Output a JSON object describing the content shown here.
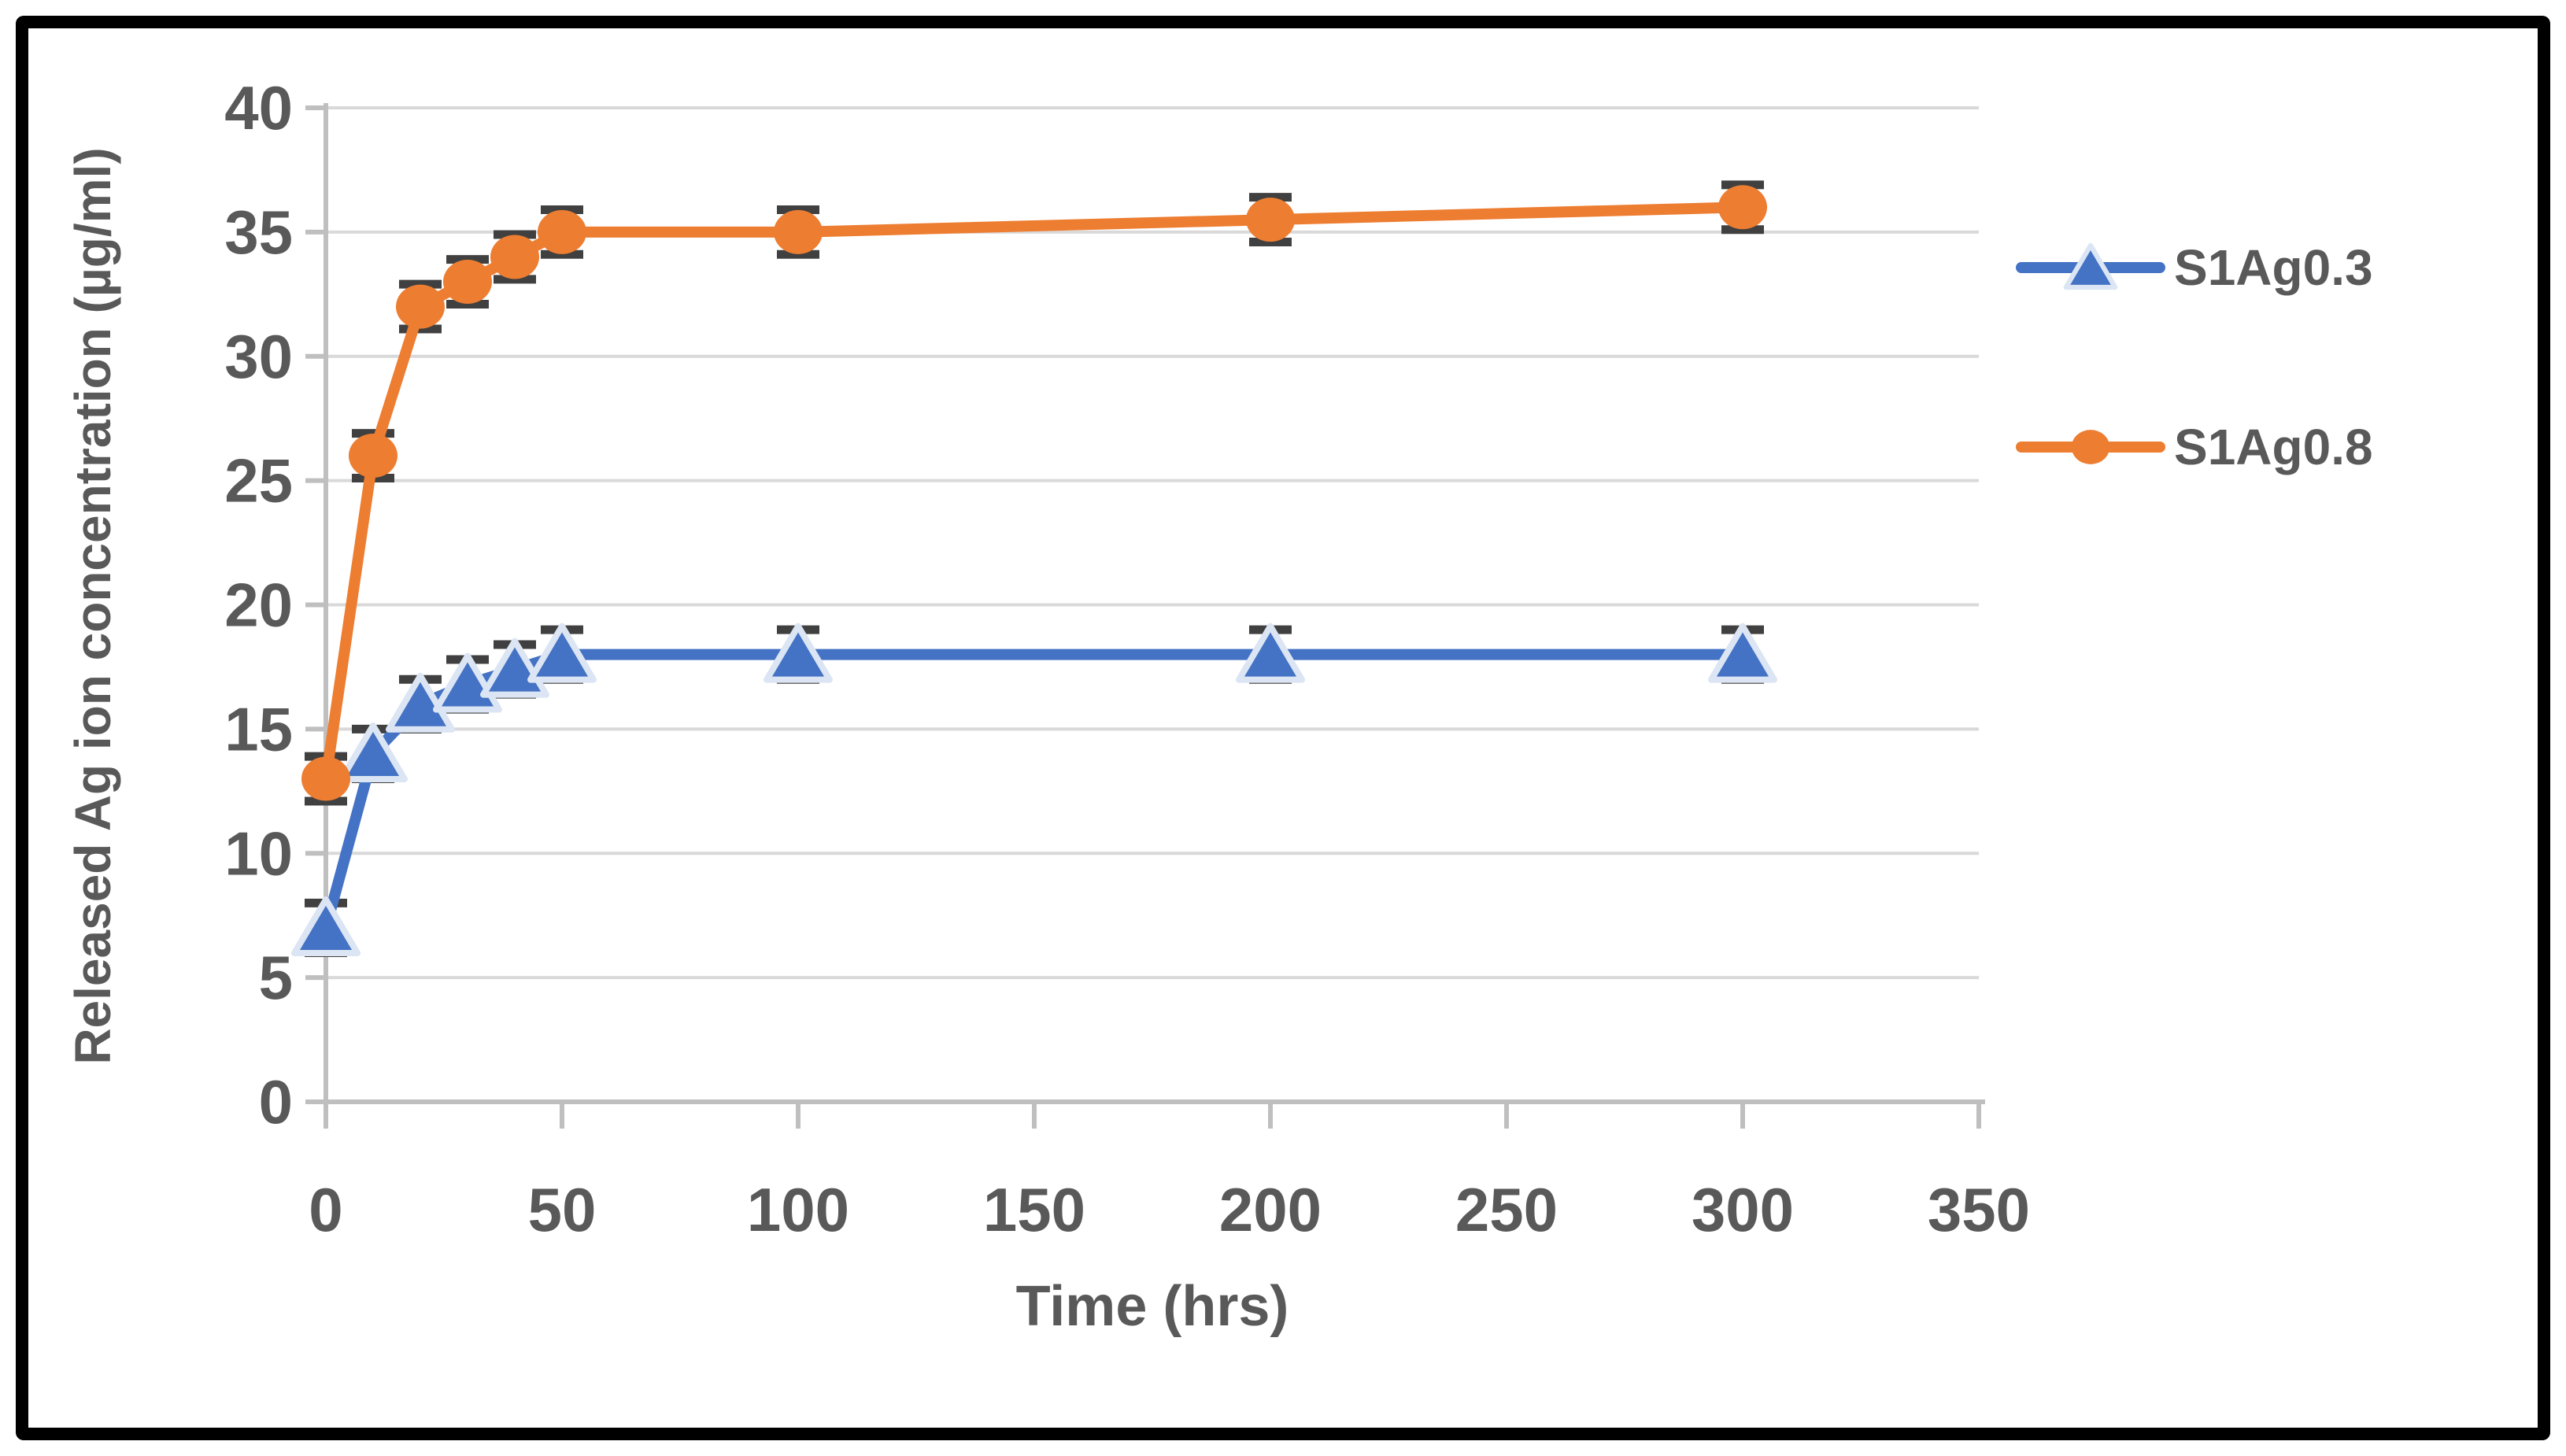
{
  "figure": {
    "background": "#FFFFFF",
    "frame_color": "#000000"
  },
  "chart_data": {
    "type": "line",
    "xlabel": "Time (hrs)",
    "ylabel": "Released Ag ion concentration (µg/ml)",
    "xlim": [
      0,
      350
    ],
    "ylim": [
      0,
      40
    ],
    "x_ticks": [
      0,
      50,
      100,
      150,
      200,
      250,
      300,
      350
    ],
    "y_ticks": [
      0,
      5,
      10,
      15,
      20,
      25,
      30,
      35,
      40
    ],
    "grid": "horizontal",
    "legend_position": "right",
    "tick_label_color": "#595959",
    "axis_title_color": "#595959",
    "axis_line_color": "#BFBFBF",
    "gridline_color": "#D9D9D9",
    "error_bar_color": "#404040",
    "series": [
      {
        "name": "S1Ag0.3",
        "color": "#4472C4",
        "marker": "triangle-up",
        "marker_fill": "#4472C4",
        "marker_outline": "#DCE5F3",
        "x": [
          0,
          10,
          20,
          30,
          40,
          50,
          100,
          200,
          300
        ],
        "y": [
          7,
          14,
          16,
          16.8,
          17.4,
          18,
          18,
          18,
          18
        ],
        "error": 1.0
      },
      {
        "name": "S1Ag0.8",
        "color": "#ED7D31",
        "marker": "circle",
        "marker_fill": "#ED7D31",
        "marker_outline": "none",
        "x": [
          0,
          10,
          20,
          30,
          40,
          50,
          100,
          200,
          300
        ],
        "y": [
          13,
          26,
          32,
          33,
          34,
          35,
          35,
          35.5,
          36
        ],
        "error": 0.9
      }
    ]
  }
}
